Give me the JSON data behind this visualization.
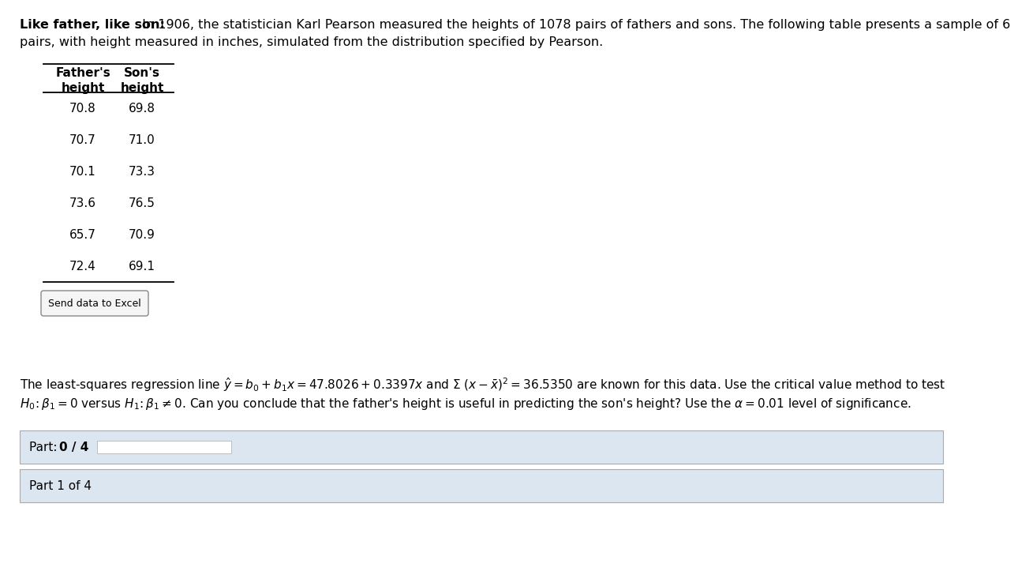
{
  "title_bold": "Like father, like son:",
  "title_regular": " In 1906, the statistician Karl Pearson measured the heights of 1078 pairs of fathers and sons. The following table presents a sample of 6",
  "title_line2": "pairs, with height measured in inches, simulated from the distribution specified by Pearson.",
  "fathers": [
    70.8,
    70.7,
    70.1,
    73.6,
    65.7,
    72.4
  ],
  "sons": [
    69.8,
    71.0,
    73.3,
    76.5,
    70.9,
    69.1
  ],
  "send_data_btn": "Send data to Excel",
  "bg_color": "#ffffff",
  "text_color": "#000000",
  "part1_bg": "#dce6f1",
  "part2_bg": "#dce6f1",
  "progress_bar_color": "#ffffff",
  "border_color": "#aaaaaa",
  "font_size_title": 11.5,
  "font_size_table": 11,
  "font_size_regression": 11,
  "font_size_parts": 11
}
